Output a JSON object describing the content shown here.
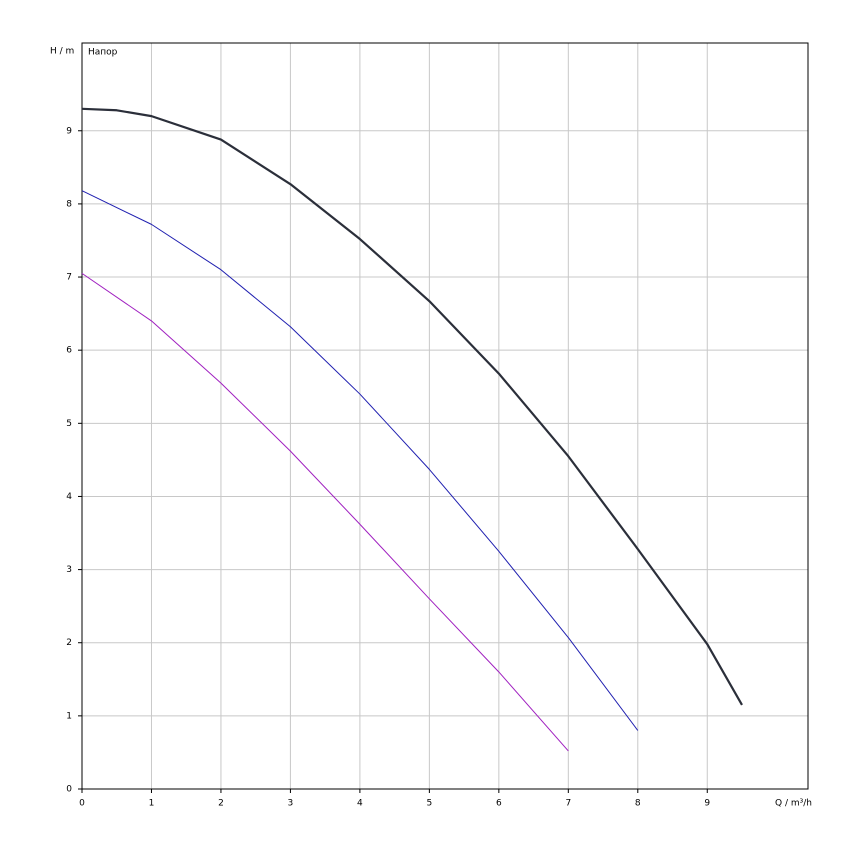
{
  "chart_data": {
    "type": "line",
    "y_label": "H / m",
    "x_label": "Q / m³/h",
    "annotation": "Напор",
    "xlim": [
      0,
      10.45
    ],
    "ylim": [
      0,
      10.2
    ],
    "xticks": [
      0,
      1,
      2,
      3,
      4,
      5,
      6,
      7,
      8,
      9
    ],
    "yticks": [
      0,
      1,
      2,
      3,
      4,
      5,
      6,
      7,
      8,
      9
    ],
    "grid": true,
    "series": [
      {
        "color": "#2b2f3a",
        "width": 2.2,
        "x": [
          0,
          0.5,
          1,
          2,
          3,
          4,
          5,
          6,
          7,
          8,
          9,
          9.5
        ],
        "values": [
          9.3,
          9.28,
          9.2,
          8.88,
          8.27,
          7.52,
          6.67,
          5.68,
          4.55,
          3.28,
          1.98,
          1.15
        ]
      },
      {
        "color": "#2020b0",
        "width": 1,
        "x": [
          0,
          1,
          2,
          3,
          4,
          5,
          6,
          7,
          8
        ],
        "values": [
          8.18,
          7.72,
          7.1,
          6.32,
          5.4,
          4.37,
          3.25,
          2.07,
          0.8
        ]
      },
      {
        "color": "#a020c0",
        "width": 1,
        "x": [
          0,
          1,
          2,
          3,
          4,
          5,
          6,
          7
        ],
        "values": [
          7.05,
          6.4,
          5.55,
          4.62,
          3.62,
          2.6,
          1.6,
          0.52
        ]
      }
    ]
  }
}
